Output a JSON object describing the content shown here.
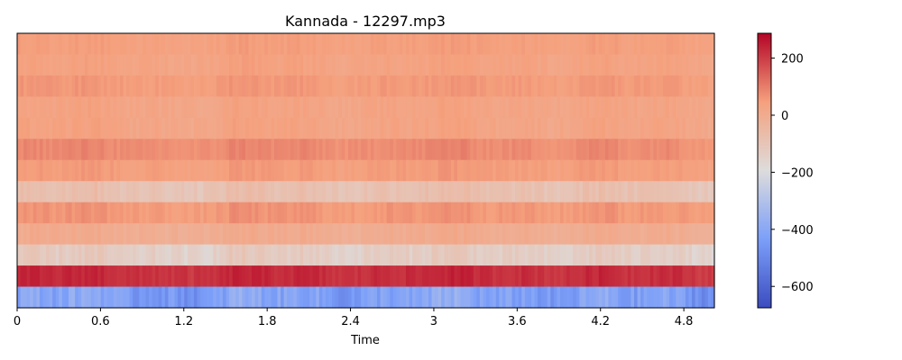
{
  "chart_data": {
    "type": "heatmap",
    "title": "Kannada - 12297.mp3",
    "xlabel": "Time",
    "ylabel": "",
    "x_ticks": [
      "0",
      "0.6",
      "1.2",
      "1.8",
      "2.4",
      "3",
      "3.6",
      "4.2",
      "4.8"
    ],
    "x_tick_values": [
      0,
      0.6,
      1.2,
      1.8,
      2.4,
      3.0,
      3.6,
      4.2,
      4.8
    ],
    "xlim": [
      0,
      5.02
    ],
    "n_coefficients": 13,
    "n_frames": 217,
    "rows_top_to_bottom": [
      {
        "mean": 45,
        "jitter": 12
      },
      {
        "mean": 35,
        "jitter": 14
      },
      {
        "mean": 55,
        "jitter": 14
      },
      {
        "mean": 30,
        "jitter": 14
      },
      {
        "mean": 30,
        "jitter": 16
      },
      {
        "mean": 80,
        "jitter": 16
      },
      {
        "mean": 50,
        "jitter": 14
      },
      {
        "mean": -80,
        "jitter": 25
      },
      {
        "mean": 60,
        "jitter": 18
      },
      {
        "mean": 0,
        "jitter": 18
      },
      {
        "mean": -130,
        "jitter": 30
      },
      {
        "mean": 225,
        "jitter": 20
      },
      {
        "mean": -420,
        "jitter": 55
      }
    ],
    "colorbar": {
      "ticks": [
        "200",
        "0",
        "−200",
        "−400",
        "−600"
      ],
      "tick_values": [
        200,
        0,
        -200,
        -400,
        -600
      ],
      "vmin": -675,
      "vmax": 287,
      "colormap": "coolwarm",
      "low_color": "#3b4cc0",
      "mid_color": "#dddcdc",
      "high_color": "#b40426"
    }
  }
}
